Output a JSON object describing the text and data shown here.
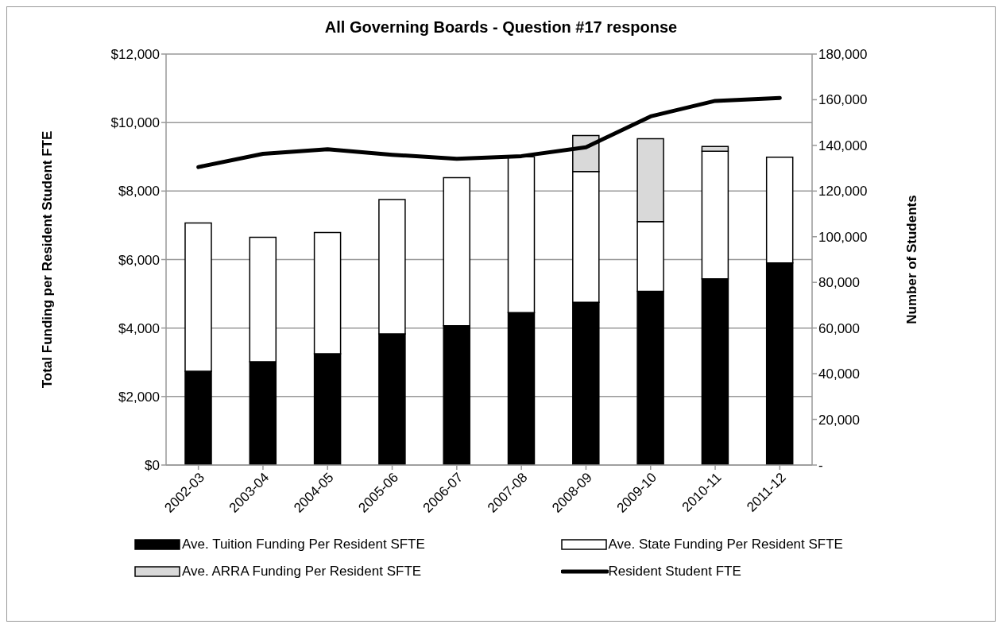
{
  "chart_data": {
    "type": "bar",
    "title": "All Governing Boards - Question #17 response",
    "ylabel": "Total Funding per Resident  Student FTE",
    "y2label": "Number of Students",
    "categories": [
      "2002-03",
      "2003-04",
      "2004-05",
      "2005-06",
      "2006-07",
      "2007-08",
      "2008-09",
      "2009-10",
      "2010-11",
      "2011-12"
    ],
    "stacked": true,
    "series": [
      {
        "name": "Ave. Tuition Funding Per Resident SFTE",
        "color": "#000000",
        "values": [
          2740,
          3020,
          3250,
          3830,
          4070,
          4450,
          4750,
          5070,
          5440,
          5900
        ]
      },
      {
        "name": "Ave. State Funding Per Resident SFTE",
        "color": "#ffffff",
        "values": [
          4330,
          3630,
          3540,
          3920,
          4320,
          4550,
          3820,
          2040,
          3720,
          3090
        ]
      },
      {
        "name": "Ave. ARRA Funding Per Resident SFTE",
        "color": "#d9d9d9",
        "values": [
          null,
          null,
          null,
          null,
          null,
          null,
          1050,
          2420,
          140,
          null
        ]
      },
      {
        "name": "Resident Student FTE",
        "type": "line",
        "axis": "y2",
        "color": "#000000",
        "values": [
          130500,
          136300,
          138300,
          135900,
          134100,
          135300,
          139200,
          152700,
          159500,
          160800
        ]
      }
    ],
    "ylim": [
      0,
      12000
    ],
    "yticks": [
      {
        "value": 0,
        "label": "$0"
      },
      {
        "value": 2000,
        "label": "$2,000"
      },
      {
        "value": 4000,
        "label": "$4,000"
      },
      {
        "value": 6000,
        "label": "$6,000"
      },
      {
        "value": 8000,
        "label": "$8,000"
      },
      {
        "value": 10000,
        "label": "$10,000"
      },
      {
        "value": 12000,
        "label": "$12,000"
      }
    ],
    "y2lim": [
      0,
      180000
    ],
    "y2ticks": [
      {
        "value": 0,
        "label": "-"
      },
      {
        "value": 20000,
        "label": "20,000"
      },
      {
        "value": 40000,
        "label": "40,000"
      },
      {
        "value": 60000,
        "label": "60,000"
      },
      {
        "value": 80000,
        "label": "80,000"
      },
      {
        "value": 100000,
        "label": "100,000"
      },
      {
        "value": 120000,
        "label": "120,000"
      },
      {
        "value": 140000,
        "label": "140,000"
      },
      {
        "value": 160000,
        "label": "160,000"
      },
      {
        "value": 180000,
        "label": "180,000"
      }
    ],
    "grid": "y",
    "legend": "bottom",
    "marker": "none",
    "line_style": "solid"
  }
}
